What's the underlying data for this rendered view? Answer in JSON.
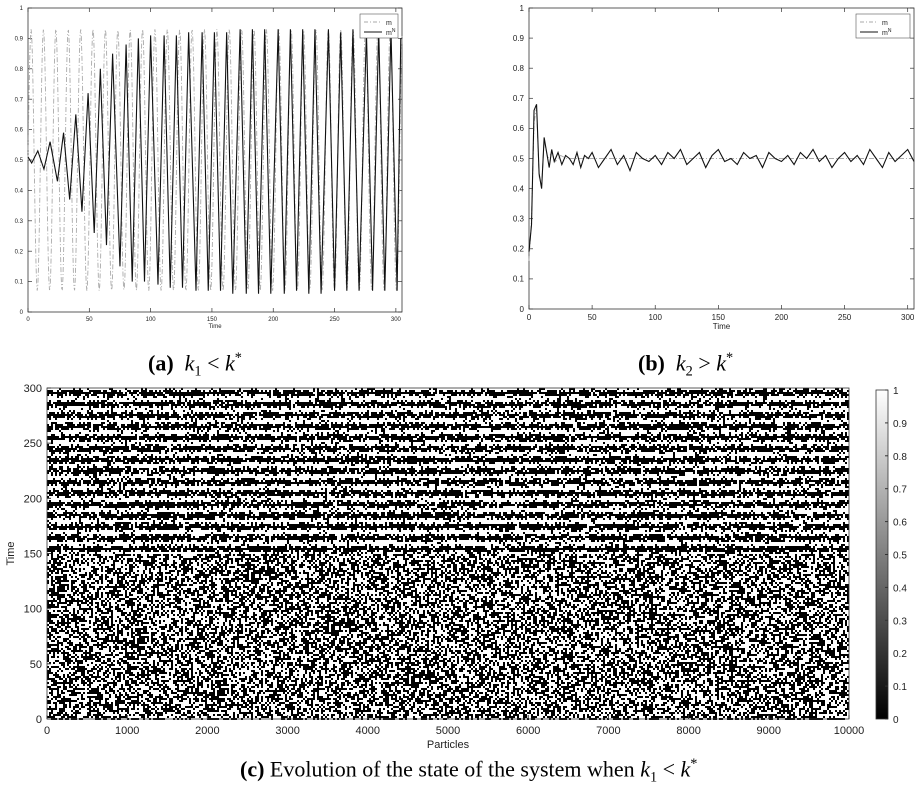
{
  "chart_data": [
    {
      "id": "a",
      "type": "line",
      "title": "",
      "xlabel": "Time",
      "ylabel": "",
      "xlim": [
        0,
        305
      ],
      "ylim": [
        0,
        1
      ],
      "xticks": [
        0,
        50,
        100,
        150,
        200,
        250,
        300
      ],
      "yticks": [
        0,
        0.1,
        0.2,
        0.3,
        0.4,
        0.5,
        0.6,
        0.7,
        0.8,
        0.9,
        1
      ],
      "grid": false,
      "legend": "top-right",
      "legend_entries": [
        "m",
        "m^N"
      ],
      "series": [
        {
          "name": "m",
          "style": "dash-dot",
          "color": "#aaaaaa",
          "period": 10.1,
          "min": 0.07,
          "max": 0.93,
          "start": 0.5
        },
        {
          "name": "m^N",
          "style": "solid",
          "color": "#111111",
          "x": [
            0,
            3,
            8,
            13,
            18,
            24,
            29,
            34,
            39,
            44,
            49,
            54,
            59,
            64,
            69,
            75,
            80,
            85,
            90,
            95,
            100,
            106,
            111,
            116,
            121,
            126,
            131,
            137,
            142,
            147,
            152,
            157,
            162,
            167,
            173,
            178,
            183,
            188,
            193,
            198,
            204,
            209,
            214,
            219,
            224,
            229,
            234,
            239,
            245,
            250,
            255,
            260,
            265,
            270,
            276,
            281,
            286,
            291,
            296,
            301,
            304
          ],
          "y": [
            0.51,
            0.49,
            0.53,
            0.47,
            0.56,
            0.43,
            0.59,
            0.37,
            0.65,
            0.33,
            0.72,
            0.26,
            0.8,
            0.22,
            0.85,
            0.15,
            0.88,
            0.1,
            0.9,
            0.1,
            0.91,
            0.09,
            0.91,
            0.08,
            0.91,
            0.08,
            0.92,
            0.07,
            0.92,
            0.07,
            0.92,
            0.07,
            0.92,
            0.06,
            0.93,
            0.06,
            0.93,
            0.06,
            0.93,
            0.06,
            0.93,
            0.06,
            0.93,
            0.07,
            0.93,
            0.06,
            0.93,
            0.06,
            0.93,
            0.07,
            0.92,
            0.07,
            0.93,
            0.07,
            0.92,
            0.07,
            0.93,
            0.07,
            0.93,
            0.07,
            0.9
          ]
        }
      ]
    },
    {
      "id": "b",
      "type": "line",
      "title": "",
      "xlabel": "Time",
      "ylabel": "",
      "xlim": [
        0,
        305
      ],
      "ylim": [
        0,
        1
      ],
      "xticks": [
        0,
        50,
        100,
        150,
        200,
        250,
        300
      ],
      "yticks": [
        0,
        0.1,
        0.2,
        0.3,
        0.4,
        0.5,
        0.6,
        0.7,
        0.8,
        0.9,
        1
      ],
      "grid": false,
      "legend": "top-right",
      "legend_entries": [
        "m",
        "m^N"
      ],
      "series": [
        {
          "name": "m",
          "style": "dash-dot",
          "color": "#aaaaaa",
          "x": [
            0,
            2,
            4,
            6,
            8,
            10,
            12,
            15,
            18,
            21,
            25,
            30,
            40,
            60,
            80,
            100,
            120,
            140,
            160,
            180,
            200,
            220,
            240,
            260,
            280,
            305
          ],
          "y": [
            0.16,
            0.3,
            0.62,
            0.67,
            0.44,
            0.41,
            0.56,
            0.5,
            0.52,
            0.49,
            0.51,
            0.5,
            0.5,
            0.5,
            0.5,
            0.5,
            0.5,
            0.5,
            0.5,
            0.5,
            0.5,
            0.5,
            0.5,
            0.5,
            0.5,
            0.5
          ]
        },
        {
          "name": "m^N",
          "style": "solid",
          "color": "#111111",
          "x": [
            0,
            2,
            4,
            6,
            8,
            10,
            12,
            14,
            16,
            18,
            20,
            23,
            26,
            29,
            32,
            35,
            38,
            41,
            44,
            47,
            50,
            55,
            60,
            65,
            70,
            75,
            80,
            85,
            90,
            95,
            100,
            105,
            110,
            115,
            120,
            125,
            130,
            135,
            140,
            145,
            150,
            155,
            160,
            165,
            170,
            175,
            180,
            185,
            190,
            195,
            200,
            205,
            210,
            215,
            220,
            225,
            230,
            235,
            240,
            245,
            250,
            255,
            260,
            265,
            270,
            275,
            280,
            285,
            290,
            295,
            300,
            305
          ],
          "y": [
            0.19,
            0.28,
            0.66,
            0.68,
            0.45,
            0.4,
            0.57,
            0.52,
            0.47,
            0.53,
            0.49,
            0.52,
            0.48,
            0.51,
            0.5,
            0.48,
            0.52,
            0.47,
            0.51,
            0.5,
            0.52,
            0.47,
            0.5,
            0.53,
            0.48,
            0.51,
            0.46,
            0.52,
            0.5,
            0.49,
            0.51,
            0.48,
            0.52,
            0.5,
            0.53,
            0.48,
            0.5,
            0.52,
            0.47,
            0.51,
            0.53,
            0.49,
            0.5,
            0.48,
            0.52,
            0.5,
            0.51,
            0.47,
            0.52,
            0.5,
            0.49,
            0.51,
            0.48,
            0.52,
            0.5,
            0.53,
            0.49,
            0.51,
            0.47,
            0.5,
            0.52,
            0.49,
            0.51,
            0.48,
            0.53,
            0.5,
            0.47,
            0.52,
            0.49,
            0.51,
            0.53,
            0.49
          ]
        }
      ]
    },
    {
      "id": "c",
      "type": "heatmap",
      "title": "",
      "xlabel": "Particles",
      "ylabel": "Time",
      "xlim": [
        0,
        10000
      ],
      "ylim": [
        0,
        300
      ],
      "xticks": [
        0,
        1000,
        2000,
        3000,
        4000,
        5000,
        6000,
        7000,
        8000,
        9000,
        10000
      ],
      "yticks": [
        0,
        50,
        100,
        150,
        200,
        250,
        300
      ],
      "colormap": "gray",
      "colorbar": {
        "min": 0,
        "max": 1,
        "ticks": [
          0,
          0.1,
          0.2,
          0.3,
          0.4,
          0.5,
          0.6,
          0.7,
          0.8,
          0.9,
          1
        ],
        "placement": "right"
      },
      "values_description": "binary particle states (0 or 1); random for Time < 150, alternating horizontal bands of period about 10 for Time >= 150",
      "band_period": 10.1,
      "synchronization_onset": 150
    }
  ],
  "captions": {
    "a": {
      "label": "(a)",
      "math": "k",
      "sub": "1",
      "rel": " < ",
      "rhs": "k",
      "sup": "*"
    },
    "b": {
      "label": "(b)",
      "math": "k",
      "sub": "2",
      "rel": " > ",
      "rhs": "k",
      "sup": "*"
    },
    "c": {
      "label": "(c)",
      "text": " Evolution of the state of the system when ",
      "math": "k",
      "sub": "1",
      "rel": " < ",
      "rhs": "k",
      "sup": "*"
    }
  }
}
